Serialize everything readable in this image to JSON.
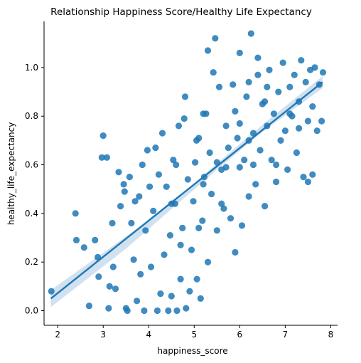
{
  "chart_data": {
    "type": "scatter",
    "title": "Relationship Happiness Score/Healthy Life Expectancy",
    "xlabel": "happiness_score",
    "ylabel": "healthy_life_expectancy",
    "xlim": [
      1.7,
      8.15
    ],
    "ylim": [
      -0.06,
      1.19
    ],
    "xticks": [
      2,
      3,
      4,
      5,
      6,
      7,
      8
    ],
    "yticks": [
      0.0,
      0.2,
      0.4,
      0.6,
      0.8,
      1.0
    ],
    "ytick_labels": [
      "0.0",
      "0.2",
      "0.4",
      "0.6",
      "0.8",
      "1.0"
    ],
    "grid": false,
    "colors": {
      "points": "#1f77b4",
      "regression": "#1f77b4",
      "ci_band": "#c6d9ec"
    },
    "regression": {
      "x": [
        1.85,
        7.82
      ],
      "y": [
        0.05,
        0.94
      ]
    },
    "ci_band": {
      "x": [
        1.85,
        3.5,
        4.5,
        5.5,
        6.5,
        7.82
      ],
      "upper": [
        0.085,
        0.305,
        0.44,
        0.605,
        0.765,
        0.965
      ],
      "lower": [
        0.015,
        0.255,
        0.418,
        0.58,
        0.735,
        0.915
      ]
    },
    "points": [
      [
        1.86,
        0.08
      ],
      [
        2.39,
        0.4
      ],
      [
        2.41,
        0.29
      ],
      [
        2.58,
        0.26
      ],
      [
        2.69,
        0.02
      ],
      [
        2.9,
        0.14
      ],
      [
        2.82,
        0.29
      ],
      [
        2.88,
        0.22
      ],
      [
        3.0,
        0.72
      ],
      [
        2.97,
        0.63
      ],
      [
        3.08,
        0.63
      ],
      [
        3.12,
        0.01
      ],
      [
        3.2,
        0.36
      ],
      [
        3.22,
        0.18
      ],
      [
        3.14,
        0.1
      ],
      [
        3.27,
        0.09
      ],
      [
        3.34,
        0.57
      ],
      [
        3.38,
        0.43
      ],
      [
        3.45,
        0.52
      ],
      [
        3.47,
        0.49
      ],
      [
        3.5,
        0.01
      ],
      [
        3.53,
        0.0
      ],
      [
        3.58,
        0.55
      ],
      [
        3.62,
        0.36
      ],
      [
        3.67,
        0.21
      ],
      [
        3.7,
        0.45
      ],
      [
        3.74,
        0.04
      ],
      [
        3.79,
        0.47
      ],
      [
        3.82,
        0.15
      ],
      [
        3.86,
        0.6
      ],
      [
        3.9,
        0.0
      ],
      [
        3.93,
        0.33
      ],
      [
        3.97,
        0.66
      ],
      [
        4.02,
        0.51
      ],
      [
        4.05,
        0.18
      ],
      [
        4.1,
        0.41
      ],
      [
        4.15,
        0.67
      ],
      [
        4.19,
        0.0
      ],
      [
        4.22,
        0.56
      ],
      [
        4.26,
        0.07
      ],
      [
        4.3,
        0.73
      ],
      [
        4.34,
        0.23
      ],
      [
        4.39,
        0.51
      ],
      [
        4.43,
        0.0
      ],
      [
        4.47,
        0.31
      ],
      [
        4.5,
        0.06
      ],
      [
        4.54,
        0.62
      ],
      [
        4.58,
        0.44
      ],
      [
        4.62,
        0.0
      ],
      [
        4.66,
        0.76
      ],
      [
        4.7,
        0.13
      ],
      [
        4.74,
        0.34
      ],
      [
        4.78,
        0.79
      ],
      [
        4.82,
        0.01
      ],
      [
        4.86,
        0.54
      ],
      [
        4.9,
        0.08
      ],
      [
        4.94,
        0.25
      ],
      [
        4.98,
        0.45
      ],
      [
        5.02,
        0.61
      ],
      [
        5.06,
        0.13
      ],
      [
        5.1,
        0.71
      ],
      [
        5.14,
        0.05
      ],
      [
        5.18,
        0.37
      ],
      [
        5.22,
        0.55
      ],
      [
        5.26,
        0.81
      ],
      [
        5.3,
        0.2
      ],
      [
        5.34,
        0.65
      ],
      [
        5.38,
        0.48
      ],
      [
        5.42,
        0.98
      ],
      [
        5.46,
        1.12
      ],
      [
        5.5,
        0.33
      ],
      [
        5.55,
        0.92
      ],
      [
        5.6,
        0.58
      ],
      [
        5.65,
        0.42
      ],
      [
        5.7,
        0.76
      ],
      [
        5.75,
        0.67
      ],
      [
        5.8,
        0.38
      ],
      [
        5.85,
        0.93
      ],
      [
        5.9,
        0.24
      ],
      [
        5.95,
        0.71
      ],
      [
        6.0,
        1.06
      ],
      [
        6.05,
        0.35
      ],
      [
        6.1,
        0.62
      ],
      [
        6.15,
        0.88
      ],
      [
        6.2,
        0.47
      ],
      [
        6.25,
        1.14
      ],
      [
        6.3,
        0.73
      ],
      [
        6.35,
        0.52
      ],
      [
        6.4,
        0.97
      ],
      [
        6.45,
        0.66
      ],
      [
        6.5,
        0.85
      ],
      [
        6.55,
        0.43
      ],
      [
        6.6,
        0.76
      ],
      [
        6.65,
        0.99
      ],
      [
        6.7,
        0.62
      ],
      [
        6.75,
        0.81
      ],
      [
        6.8,
        0.53
      ],
      [
        6.85,
        0.9
      ],
      [
        6.9,
        0.7
      ],
      [
        6.95,
        1.02
      ],
      [
        7.0,
        0.74
      ],
      [
        7.05,
        0.58
      ],
      [
        7.1,
        0.92
      ],
      [
        7.15,
        0.8
      ],
      [
        7.2,
        0.97
      ],
      [
        7.25,
        0.65
      ],
      [
        7.3,
        0.86
      ],
      [
        7.35,
        1.03
      ],
      [
        7.4,
        0.55
      ],
      [
        7.45,
        0.94
      ],
      [
        7.5,
        0.78
      ],
      [
        7.55,
        0.99
      ],
      [
        7.6,
        0.84
      ],
      [
        7.65,
        1.0
      ],
      [
        7.7,
        0.74
      ],
      [
        7.75,
        0.93
      ],
      [
        7.8,
        0.78
      ],
      [
        7.83,
        0.98
      ],
      [
        7.5,
        0.53
      ],
      [
        7.6,
        0.56
      ],
      [
        4.8,
        0.88
      ],
      [
        5.3,
        1.07
      ],
      [
        6.55,
        0.86
      ],
      [
        6.2,
        0.94
      ],
      [
        6.4,
        1.04
      ],
      [
        5.6,
        0.44
      ],
      [
        5.9,
        0.82
      ],
      [
        4.6,
        0.6
      ],
      [
        5.05,
        0.7
      ],
      [
        6.0,
        0.59
      ],
      [
        6.3,
        0.6
      ],
      [
        6.8,
        0.6
      ],
      [
        5.5,
        0.61
      ],
      [
        5.2,
        0.52
      ],
      [
        4.5,
        0.44
      ],
      [
        4.7,
        0.27
      ],
      [
        5.2,
        0.81
      ],
      [
        6.2,
        0.7
      ],
      [
        6.6,
        0.92
      ],
      [
        7.1,
        0.81
      ],
      [
        7.3,
        0.75
      ],
      [
        6.0,
        0.77
      ],
      [
        5.7,
        0.59
      ],
      [
        5.1,
        0.34
      ]
    ]
  }
}
